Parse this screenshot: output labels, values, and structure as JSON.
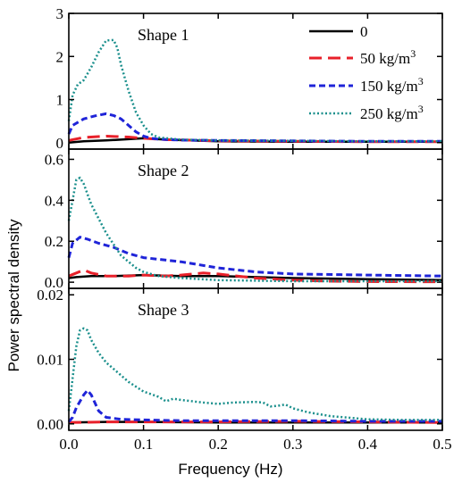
{
  "chart_data": {
    "type": "line",
    "xlabel": "Frequency (Hz)",
    "ylabel": "Power spectral density",
    "xlim": [
      0.0,
      0.5
    ],
    "xticks": [
      "0.0",
      "0.1",
      "0.2",
      "0.3",
      "0.4",
      "0.5"
    ],
    "legend": {
      "placement": "top-right",
      "entries": [
        {
          "label": "0",
          "sup": "",
          "color": "#000000",
          "dash": "solid"
        },
        {
          "label": "50 kg/m",
          "sup": "3",
          "color": "#e8202a",
          "dash": "long-dash"
        },
        {
          "label": "150 kg/m",
          "sup": "3",
          "color": "#1f24d8",
          "dash": "short-dash"
        },
        {
          "label": "250 kg/m",
          "sup": "3",
          "color": "#1a8f8c",
          "dash": "dot"
        }
      ]
    },
    "panels": [
      {
        "label": "Shape 1",
        "ylim": [
          -0.15,
          3.0
        ],
        "yticks": [
          {
            "v": 0,
            "t": "0"
          },
          {
            "v": 1,
            "t": "1"
          },
          {
            "v": 2,
            "t": "2"
          },
          {
            "v": 3,
            "t": "3"
          }
        ],
        "series": [
          {
            "name": "0",
            "x": [
              0,
              0.02,
              0.05,
              0.08,
              0.1,
              0.13,
              0.2,
              0.3,
              0.4,
              0.5
            ],
            "y": [
              0.0,
              0.03,
              0.05,
              0.08,
              0.1,
              0.07,
              0.03,
              0.02,
              0.02,
              0.02
            ]
          },
          {
            "name": "50 kg/m3",
            "x": [
              0,
              0.02,
              0.05,
              0.08,
              0.1,
              0.13,
              0.2,
              0.3,
              0.4,
              0.5
            ],
            "y": [
              0.05,
              0.12,
              0.15,
              0.13,
              0.1,
              0.07,
              0.04,
              0.03,
              0.02,
              0.02
            ]
          },
          {
            "name": "150 kg/m3",
            "x": [
              0,
              0.005,
              0.02,
              0.035,
              0.05,
              0.06,
              0.07,
              0.08,
              0.09,
              0.1,
              0.11,
              0.12,
              0.15,
              0.2,
              0.3,
              0.4,
              0.5
            ],
            "y": [
              0.2,
              0.4,
              0.55,
              0.62,
              0.67,
              0.63,
              0.55,
              0.4,
              0.25,
              0.15,
              0.1,
              0.08,
              0.06,
              0.05,
              0.04,
              0.03,
              0.03
            ]
          },
          {
            "name": "250 kg/m3",
            "x": [
              0,
              0.005,
              0.012,
              0.02,
              0.03,
              0.04,
              0.05,
              0.06,
              0.065,
              0.07,
              0.08,
              0.09,
              0.1,
              0.11,
              0.12,
              0.15,
              0.2,
              0.3,
              0.4,
              0.5
            ],
            "y": [
              0.5,
              1.1,
              1.35,
              1.45,
              1.75,
              2.1,
              2.37,
              2.38,
              2.2,
              1.8,
              1.2,
              0.7,
              0.4,
              0.2,
              0.12,
              0.07,
              0.05,
              0.04,
              0.03,
              0.03
            ]
          }
        ]
      },
      {
        "label": "Shape 2",
        "ylim": [
          -0.03,
          0.65
        ],
        "yticks": [
          {
            "v": 0,
            "t": "0.0"
          },
          {
            "v": 0.2,
            "t": "0.2"
          },
          {
            "v": 0.4,
            "t": "0.4"
          },
          {
            "v": 0.6,
            "t": "0.6"
          }
        ],
        "series": [
          {
            "name": "0",
            "x": [
              0,
              0.01,
              0.03,
              0.06,
              0.1,
              0.15,
              0.2,
              0.25,
              0.3,
              0.4,
              0.5
            ],
            "y": [
              0.02,
              0.025,
              0.03,
              0.03,
              0.035,
              0.03,
              0.03,
              0.025,
              0.02,
              0.015,
              0.01
            ]
          },
          {
            "name": "50 kg/m3",
            "x": [
              0,
              0.01,
              0.02,
              0.03,
              0.05,
              0.08,
              0.1,
              0.13,
              0.15,
              0.18,
              0.2,
              0.25,
              0.3,
              0.35,
              0.4,
              0.5
            ],
            "y": [
              0.03,
              0.045,
              0.06,
              0.045,
              0.03,
              0.03,
              0.035,
              0.03,
              0.035,
              0.045,
              0.04,
              0.02,
              0.01,
              0.005,
              0.003,
              0.002
            ]
          },
          {
            "name": "150 kg/m3",
            "x": [
              0,
              0.005,
              0.015,
              0.025,
              0.04,
              0.06,
              0.08,
              0.1,
              0.15,
              0.2,
              0.25,
              0.3,
              0.4,
              0.5
            ],
            "y": [
              0.12,
              0.19,
              0.22,
              0.21,
              0.19,
              0.17,
              0.14,
              0.12,
              0.1,
              0.07,
              0.05,
              0.04,
              0.035,
              0.03
            ]
          },
          {
            "name": "250 kg/m3",
            "x": [
              0,
              0.005,
              0.01,
              0.015,
              0.02,
              0.03,
              0.05,
              0.07,
              0.09,
              0.1,
              0.12,
              0.15,
              0.2,
              0.3,
              0.4,
              0.5
            ],
            "y": [
              0.3,
              0.4,
              0.5,
              0.51,
              0.48,
              0.38,
              0.24,
              0.13,
              0.07,
              0.05,
              0.03,
              0.02,
              0.01,
              0.005,
              0.005,
              0.005
            ]
          }
        ]
      },
      {
        "label": "Shape 3",
        "ylim": [
          -0.001,
          0.021
        ],
        "yticks": [
          {
            "v": 0,
            "t": "0.00"
          },
          {
            "v": 0.01,
            "t": "0.01"
          },
          {
            "v": 0.02,
            "t": "0.02"
          }
        ],
        "series": [
          {
            "name": "0",
            "x": [
              0,
              0.05,
              0.1,
              0.2,
              0.3,
              0.4,
              0.5
            ],
            "y": [
              0.0002,
              0.0003,
              0.0003,
              0.0002,
              0.0002,
              0.0002,
              0.0002
            ]
          },
          {
            "name": "50 kg/m3",
            "x": [
              0,
              0.05,
              0.1,
              0.2,
              0.3,
              0.4,
              0.5
            ],
            "y": [
              0.0002,
              0.0003,
              0.0003,
              0.0003,
              0.0004,
              0.0003,
              0.0002
            ]
          },
          {
            "name": "150 kg/m3",
            "x": [
              0,
              0.005,
              0.01,
              0.02,
              0.025,
              0.03,
              0.04,
              0.05,
              0.07,
              0.1,
              0.15,
              0.2,
              0.3,
              0.4,
              0.5
            ],
            "y": [
              0.0003,
              0.001,
              0.0025,
              0.0045,
              0.0052,
              0.0045,
              0.002,
              0.001,
              0.0007,
              0.0006,
              0.0005,
              0.0005,
              0.0005,
              0.0004,
              0.0004
            ]
          },
          {
            "name": "250 kg/m3",
            "x": [
              0,
              0.005,
              0.01,
              0.015,
              0.02,
              0.025,
              0.03,
              0.04,
              0.05,
              0.06,
              0.08,
              0.1,
              0.12,
              0.13,
              0.14,
              0.15,
              0.18,
              0.2,
              0.22,
              0.25,
              0.26,
              0.27,
              0.28,
              0.29,
              0.3,
              0.32,
              0.35,
              0.4,
              0.45,
              0.5
            ],
            "y": [
              0.002,
              0.007,
              0.012,
              0.0145,
              0.0148,
              0.0145,
              0.013,
              0.011,
              0.0095,
              0.0085,
              0.0065,
              0.005,
              0.0042,
              0.0035,
              0.0039,
              0.0037,
              0.0033,
              0.0031,
              0.0033,
              0.0034,
              0.0033,
              0.0027,
              0.0028,
              0.003,
              0.0024,
              0.0018,
              0.0012,
              0.0007,
              0.0006,
              0.0006
            ]
          }
        ]
      }
    ]
  }
}
